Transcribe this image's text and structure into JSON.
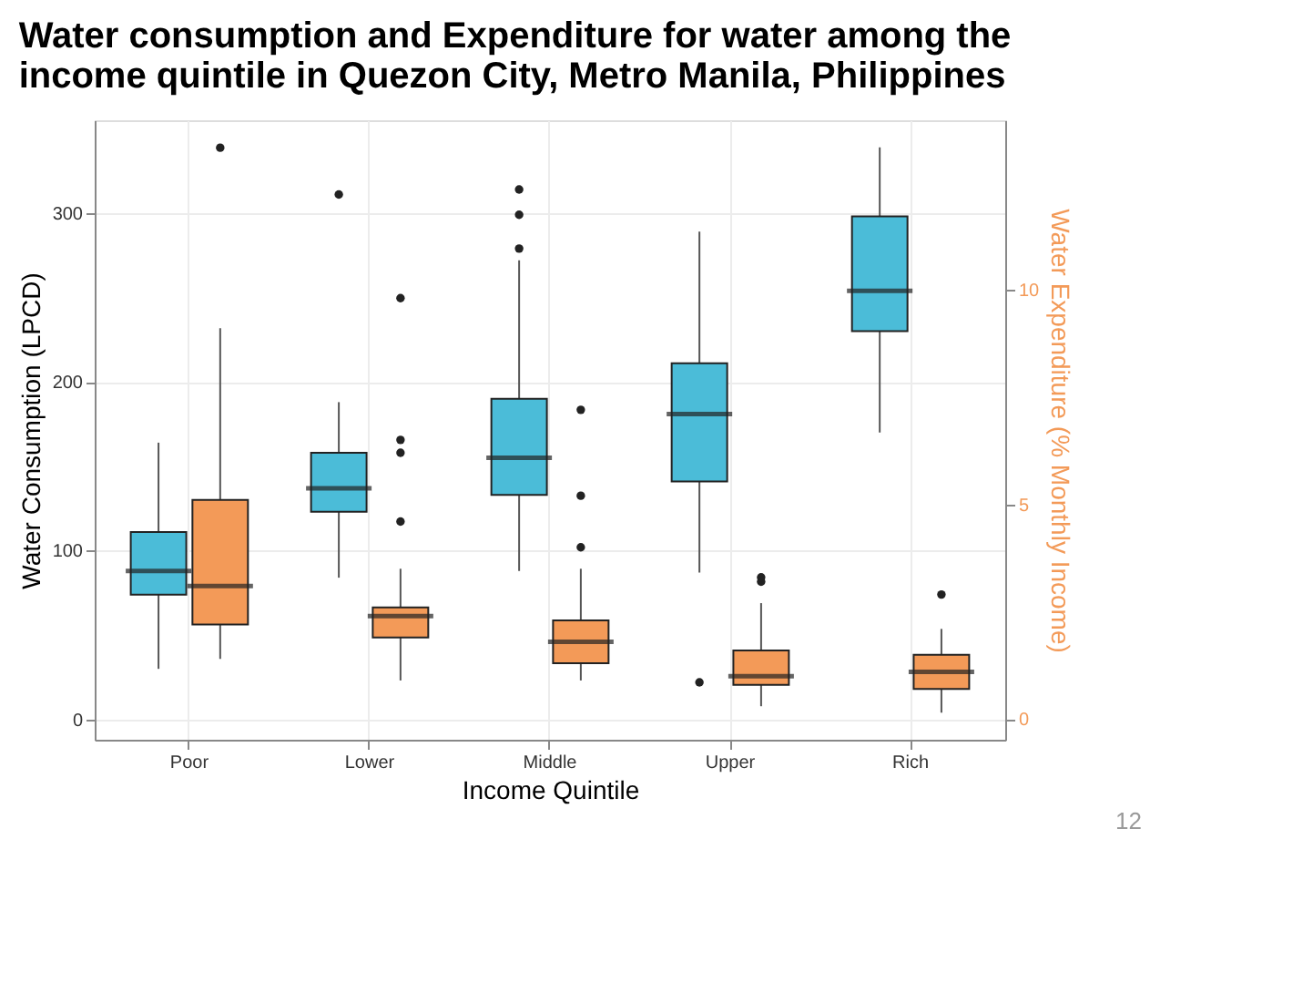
{
  "chart_data": {
    "type": "box",
    "title": "Water consumption and Expenditure for water among the\nincome quintile in Quezon City, Metro Manila, Philippines",
    "xlabel": "Income Quintile",
    "ylabel": "Water Consumption (LPCD)",
    "y2label": "Water Expenditure (% Monthly Income)",
    "categories": [
      "Poor",
      "Lower",
      "Middle",
      "Upper",
      "Rich"
    ],
    "series": [
      {
        "color": "#4bbcd8",
        "boxes": [
          {
            "low": 30,
            "q1": 74,
            "median": 88,
            "q3": 111,
            "high": 164
          },
          {
            "low": 84,
            "q1": 123,
            "median": 137,
            "q3": 158,
            "high": 188,
            "outliers": [
              311
            ]
          },
          {
            "low": 88,
            "q1": 133,
            "median": 155,
            "q3": 190,
            "high": 272,
            "outliers": [
              279,
              299,
              314
            ]
          },
          {
            "low": 87,
            "q1": 141,
            "median": 181,
            "q3": 211,
            "high": 289,
            "outliers": [
              22
            ]
          },
          {
            "low": 170,
            "q1": 230,
            "median": 254,
            "q3": 298,
            "high": 339
          }
        ]
      },
      {
        "color": "#f39a58",
        "axis": "y2",
        "boxes": [
          {
            "low": 1.4,
            "q1": 2.2,
            "median": 3.1,
            "q3": 5.1,
            "high": 9.1,
            "outliers": [
              13.3
            ]
          },
          {
            "low": 0.9,
            "q1": 1.9,
            "median": 2.4,
            "q3": 2.6,
            "high": 3.5,
            "outliers": [
              4.6,
              6.2,
              6.5,
              9.8
            ]
          },
          {
            "low": 0.9,
            "q1": 1.3,
            "median": 1.8,
            "q3": 2.3,
            "high": 3.5,
            "outliers": [
              4.0,
              5.2,
              7.2
            ]
          },
          {
            "low": 0.3,
            "q1": 0.8,
            "median": 1.0,
            "q3": 1.6,
            "high": 2.7,
            "outliers": [
              3.2,
              3.3
            ]
          },
          {
            "low": 0.15,
            "q1": 0.7,
            "median": 1.1,
            "q3": 1.5,
            "high": 2.1,
            "outliers": [
              2.9
            ]
          }
        ]
      }
    ],
    "ylim": [
      -12,
      355
    ],
    "yticks": [
      0,
      100,
      200,
      300
    ],
    "y2lim": [
      -0.48,
      13.94
    ],
    "y2ticks": [
      0,
      5,
      10
    ],
    "grid": true,
    "annotations": [
      "12"
    ]
  }
}
